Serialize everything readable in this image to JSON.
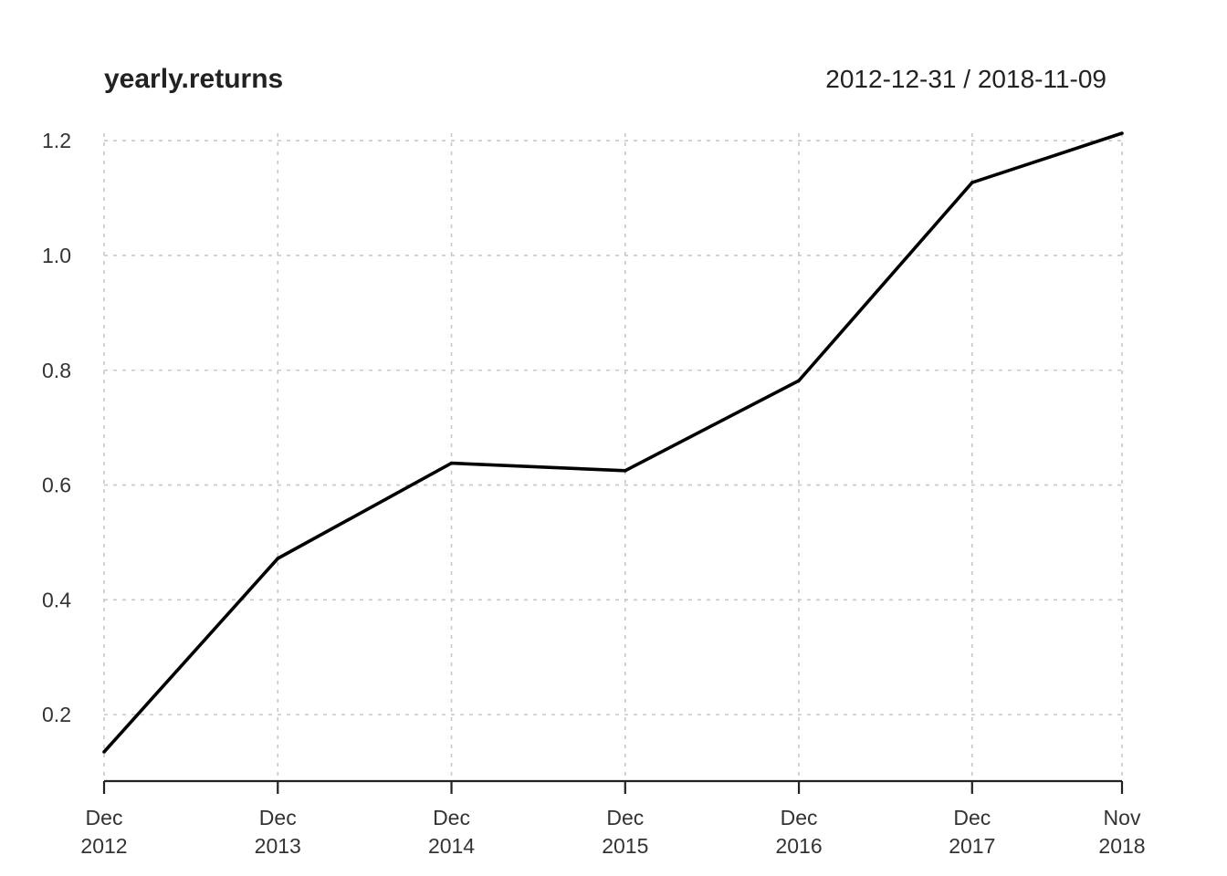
{
  "chart_data": {
    "type": "line",
    "title": "yearly.returns",
    "date_range": "2012-12-31 / 2018-11-09",
    "x": [
      "2012-12-31",
      "2013-12-31",
      "2014-12-31",
      "2015-12-31",
      "2016-12-30",
      "2017-12-29",
      "2018-11-09"
    ],
    "x_tick_labels": [
      {
        "month": "Dec",
        "year": "2012"
      },
      {
        "month": "Dec",
        "year": "2013"
      },
      {
        "month": "Dec",
        "year": "2014"
      },
      {
        "month": "Dec",
        "year": "2015"
      },
      {
        "month": "Dec",
        "year": "2016"
      },
      {
        "month": "Dec",
        "year": "2017"
      },
      {
        "month": "Nov",
        "year": "2018"
      }
    ],
    "series": [
      {
        "values": [
          0.135,
          0.472,
          0.638,
          0.625,
          0.782,
          1.127,
          1.213
        ]
      }
    ],
    "y_ticks": [
      "0.2",
      "0.4",
      "0.6",
      "0.8",
      "1.0",
      "1.2"
    ],
    "ylim": [
      0.135,
      1.213
    ],
    "grid": true,
    "line_color": "#000000",
    "grid_color": "#c8c8c8"
  }
}
